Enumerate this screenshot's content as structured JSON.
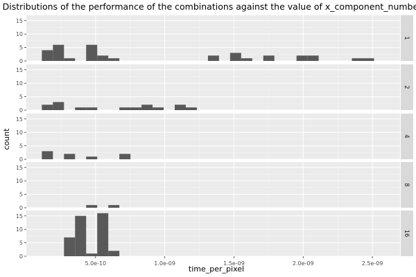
{
  "chart_data": {
    "type": "bar",
    "subtype": "faceted-histogram",
    "title": "Distributions of the performance of the combinations against the value of x_component_number",
    "xlabel": "time_per_pixel",
    "ylabel": "count",
    "facet_variable": "x_component_number",
    "xlim": [
      0,
      2.7e-09
    ],
    "ylim": [
      0,
      17
    ],
    "bin_width": 8e-11,
    "x_ticks": [
      {
        "value": 5e-10,
        "label": "5.0e-10"
      },
      {
        "value": 1e-09,
        "label": "1.0e-09"
      },
      {
        "value": 1.5e-09,
        "label": "1.5e-09"
      },
      {
        "value": 2e-09,
        "label": "2.0e-09"
      },
      {
        "value": 2.5e-09,
        "label": "2.5e-09"
      }
    ],
    "y_ticks": [
      {
        "value": 0,
        "label": "0"
      },
      {
        "value": 5,
        "label": "5"
      },
      {
        "value": 10,
        "label": "10"
      },
      {
        "value": 15,
        "label": "15"
      }
    ],
    "grid": true,
    "legend": "none",
    "colors": {
      "bar": "#595959",
      "panel_background": "#EBEBEB",
      "grid_major": "#FFFFFF",
      "strip_background": "#D9D9D9",
      "strip_text": "#1A1A1A",
      "axis_text": "#4D4D4D",
      "title_text": "#000000"
    },
    "facets": [
      {
        "label": "1",
        "bins": [
          {
            "x0": 1.12e-10,
            "x1": 1.92e-10,
            "count": 4
          },
          {
            "x0": 1.92e-10,
            "x1": 2.72e-10,
            "count": 6
          },
          {
            "x0": 2.72e-10,
            "x1": 3.52e-10,
            "count": 1
          },
          {
            "x0": 4.32e-10,
            "x1": 5.12e-10,
            "count": 6
          },
          {
            "x0": 5.12e-10,
            "x1": 5.92e-10,
            "count": 2
          },
          {
            "x0": 5.92e-10,
            "x1": 6.72e-10,
            "count": 1
          },
          {
            "x0": 1.312e-09,
            "x1": 1.392e-09,
            "count": 2
          },
          {
            "x0": 1.472e-09,
            "x1": 1.552e-09,
            "count": 3
          },
          {
            "x0": 1.552e-09,
            "x1": 1.632e-09,
            "count": 1
          },
          {
            "x0": 1.712e-09,
            "x1": 1.792e-09,
            "count": 2
          },
          {
            "x0": 1.952e-09,
            "x1": 2.032e-09,
            "count": 2
          },
          {
            "x0": 2.032e-09,
            "x1": 2.112e-09,
            "count": 2
          },
          {
            "x0": 2.352e-09,
            "x1": 2.432e-09,
            "count": 1
          },
          {
            "x0": 2.432e-09,
            "x1": 2.512e-09,
            "count": 1
          }
        ]
      },
      {
        "label": "2",
        "bins": [
          {
            "x0": 1.12e-10,
            "x1": 1.92e-10,
            "count": 2
          },
          {
            "x0": 1.92e-10,
            "x1": 2.72e-10,
            "count": 3
          },
          {
            "x0": 3.52e-10,
            "x1": 4.32e-10,
            "count": 1
          },
          {
            "x0": 4.32e-10,
            "x1": 5.12e-10,
            "count": 1
          },
          {
            "x0": 6.72e-10,
            "x1": 7.52e-10,
            "count": 1
          },
          {
            "x0": 7.52e-10,
            "x1": 8.32e-10,
            "count": 1
          },
          {
            "x0": 8.32e-10,
            "x1": 9.12e-10,
            "count": 2
          },
          {
            "x0": 9.12e-10,
            "x1": 9.92e-10,
            "count": 1
          },
          {
            "x0": 1.072e-09,
            "x1": 1.152e-09,
            "count": 2
          },
          {
            "x0": 1.152e-09,
            "x1": 1.232e-09,
            "count": 1
          }
        ]
      },
      {
        "label": "4",
        "bins": [
          {
            "x0": 1.12e-10,
            "x1": 1.92e-10,
            "count": 3
          },
          {
            "x0": 2.72e-10,
            "x1": 3.52e-10,
            "count": 2
          },
          {
            "x0": 4.32e-10,
            "x1": 5.12e-10,
            "count": 1
          },
          {
            "x0": 6.72e-10,
            "x1": 7.52e-10,
            "count": 2
          }
        ]
      },
      {
        "label": "8",
        "bins": [
          {
            "x0": 4.32e-10,
            "x1": 5.12e-10,
            "count": 1
          },
          {
            "x0": 5.92e-10,
            "x1": 6.72e-10,
            "count": 1
          }
        ]
      },
      {
        "label": "16",
        "bins": [
          {
            "x0": 2.72e-10,
            "x1": 3.52e-10,
            "count": 7
          },
          {
            "x0": 3.52e-10,
            "x1": 4.32e-10,
            "count": 15
          },
          {
            "x0": 4.32e-10,
            "x1": 5.12e-10,
            "count": 1
          },
          {
            "x0": 5.12e-10,
            "x1": 5.92e-10,
            "count": 16
          },
          {
            "x0": 5.92e-10,
            "x1": 6.72e-10,
            "count": 2
          }
        ]
      }
    ]
  }
}
